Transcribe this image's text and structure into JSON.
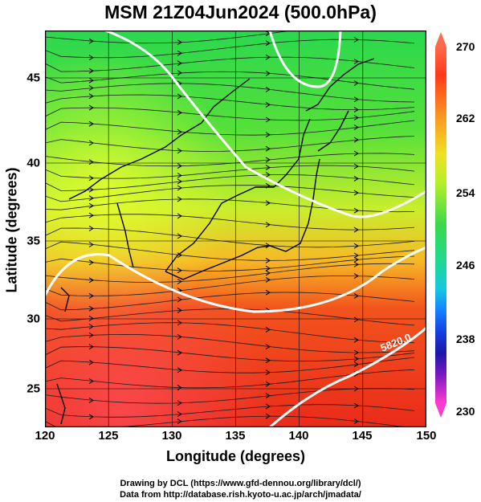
{
  "title": "MSM 21Z04Jun2024 (500.0hPa)",
  "axes": {
    "xlabel": "Longitude (degrees)",
    "ylabel": "Latitude  (degrees)",
    "x_ticks": [
      "120",
      "125",
      "130",
      "135",
      "140",
      "145",
      "150"
    ],
    "y_ticks": [
      "45",
      "40",
      "35",
      "30",
      "25"
    ]
  },
  "colorbar": {
    "min": 230,
    "max": 270,
    "labels": [
      "270",
      "262",
      "254",
      "246",
      "238",
      "230"
    ],
    "top_color": "#ff6a4a",
    "bottom_color": "#ff3ccf"
  },
  "contour_label": "5820.0",
  "credits": {
    "line1": "Drawing by DCL (https://www.gfd-dennou.org/library/dcl/)",
    "line2": "Data from http://database.rish.kyoto-u.ac.jp/arch/jmadata/"
  },
  "colors": {
    "cold": "#26d84b",
    "mid": "#d9f02a",
    "warm": "#f49a20",
    "hot": "#ef2a1c"
  }
}
